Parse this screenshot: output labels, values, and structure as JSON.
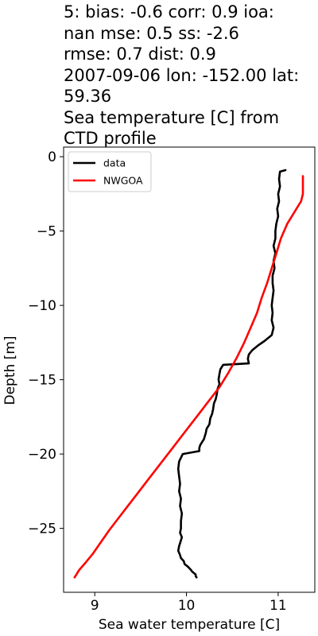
{
  "chart_data": {
    "type": "line",
    "title_lines": [
      "5: bias: -0.6  corr: 0.9  ioa:",
      "nan  mse: 0.5  ss: -2.6",
      "rmse: 0.7  dist: 0.9",
      "2007-09-06 lon: -152.00 lat:",
      "59.36",
      "Sea temperature [C] from",
      "CTD profile"
    ],
    "xlabel": "Sea water temperature [C]",
    "ylabel": "Depth [m]",
    "xlim": [
      8.66,
      11.4
    ],
    "ylim": [
      -29.3,
      0.65
    ],
    "xticks": [
      9,
      10,
      11
    ],
    "yticks": [
      0,
      -5,
      -10,
      -15,
      -20,
      -25
    ],
    "legend": {
      "placement": "upper left",
      "entries": [
        "data",
        "NWGOA"
      ]
    },
    "series": [
      {
        "name": "data",
        "color": "#000000",
        "x": [
          11.08,
          11.02,
          11.01,
          11.02,
          11.0,
          11.01,
          10.99,
          11.0,
          10.98,
          10.97,
          10.97,
          10.95,
          10.97,
          10.95,
          10.96,
          10.94,
          10.94,
          10.95,
          10.94,
          10.93,
          10.94,
          10.93,
          10.95,
          10.93,
          10.85,
          10.78,
          10.72,
          10.68,
          10.67,
          10.68,
          10.4,
          10.37,
          10.36,
          10.35,
          10.36,
          10.34,
          10.33,
          10.32,
          10.3,
          10.29,
          10.28,
          10.26,
          10.25,
          10.22,
          10.21,
          10.2,
          10.19,
          10.17,
          10.15,
          10.14,
          10.14,
          9.96,
          9.92,
          9.91,
          9.92,
          9.93,
          9.92,
          9.94,
          9.93,
          9.95,
          9.94,
          9.94,
          9.93,
          9.95,
          9.93,
          9.92,
          9.91,
          9.93,
          9.94,
          9.97,
          9.98,
          10.02,
          10.05,
          10.06,
          10.08,
          10.1,
          10.1,
          10.11
        ],
        "y": [
          -0.9,
          -1.0,
          -1.5,
          -2.0,
          -2.5,
          -3.0,
          -3.5,
          -4.0,
          -4.5,
          -5.0,
          -5.5,
          -6.0,
          -6.5,
          -7.0,
          -7.5,
          -8.0,
          -8.5,
          -9.0,
          -9.5,
          -10.0,
          -10.5,
          -11.0,
          -11.5,
          -12.0,
          -12.4,
          -12.7,
          -13.0,
          -13.3,
          -13.6,
          -13.9,
          -14.0,
          -14.3,
          -14.6,
          -15.0,
          -15.3,
          -15.6,
          -16.0,
          -16.3,
          -16.6,
          -17.0,
          -17.3,
          -17.6,
          -18.0,
          -18.3,
          -18.6,
          -18.8,
          -19.0,
          -19.2,
          -19.4,
          -19.6,
          -19.8,
          -20.0,
          -20.5,
          -21.0,
          -21.5,
          -22.0,
          -22.5,
          -23.0,
          -23.5,
          -24.0,
          -24.5,
          -25.0,
          -25.3,
          -25.6,
          -26.0,
          -26.2,
          -26.5,
          -26.8,
          -27.0,
          -27.2,
          -27.4,
          -27.6,
          -27.8,
          -27.9,
          -28.0,
          -28.1,
          -28.2,
          -28.3
        ]
      },
      {
        "name": "NWGOA",
        "color": "#ff0000",
        "x": [
          11.27,
          11.27,
          11.25,
          11.2,
          11.15,
          11.1,
          11.03,
          10.98,
          10.93,
          10.88,
          10.82,
          10.77,
          10.7,
          10.63,
          10.55,
          10.46,
          10.36,
          10.26,
          10.16,
          10.06,
          9.96,
          9.86,
          9.76,
          9.66,
          9.56,
          9.46,
          9.36,
          9.26,
          9.16,
          9.07,
          8.98,
          8.9,
          8.83,
          8.78
        ],
        "y": [
          -1.3,
          -2.5,
          -3.0,
          -3.5,
          -4.0,
          -4.5,
          -5.5,
          -6.5,
          -7.5,
          -8.5,
          -9.5,
          -10.5,
          -11.5,
          -12.5,
          -13.5,
          -14.5,
          -15.5,
          -16.3,
          -17.1,
          -17.9,
          -18.7,
          -19.5,
          -20.3,
          -21.1,
          -21.9,
          -22.7,
          -23.5,
          -24.3,
          -25.1,
          -25.9,
          -26.7,
          -27.3,
          -27.8,
          -28.3
        ]
      }
    ],
    "colors": {
      "data": "#000000",
      "NWGOA": "#ff0000"
    }
  }
}
